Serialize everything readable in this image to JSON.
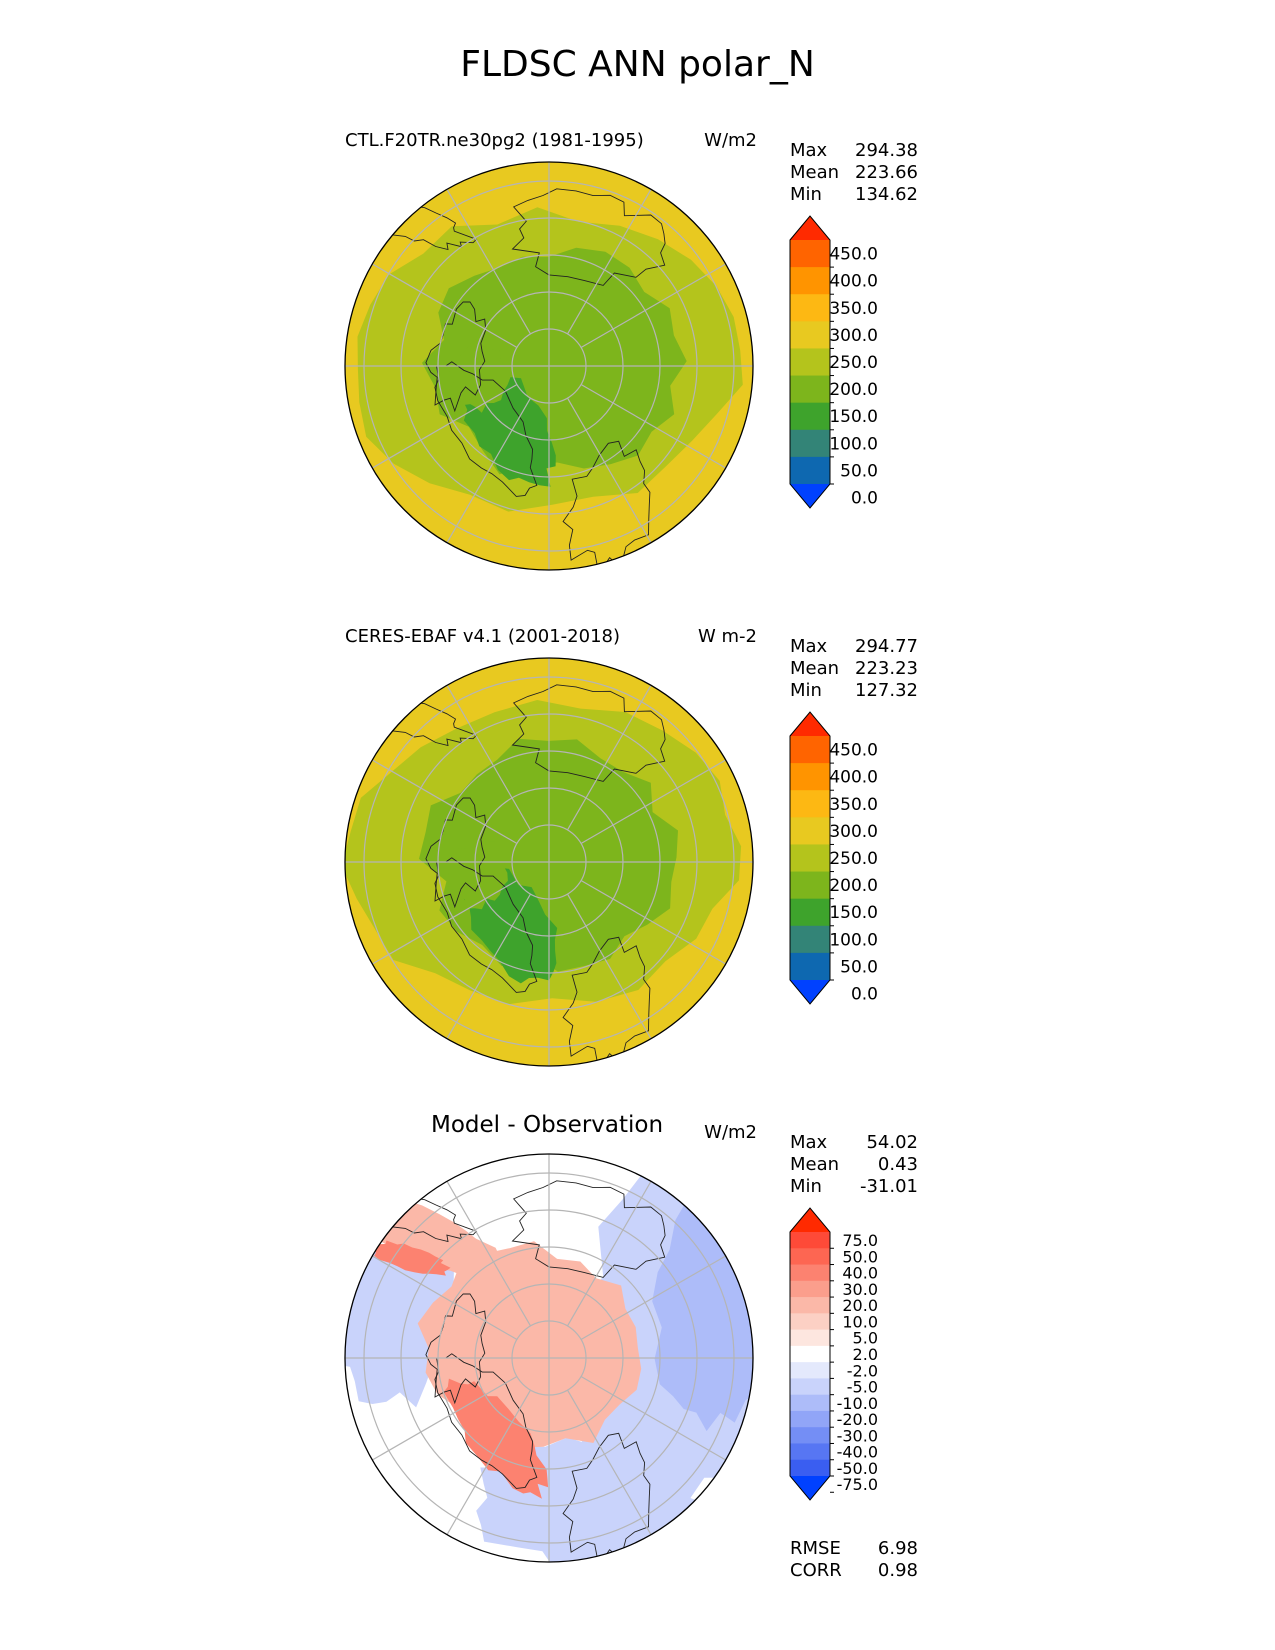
{
  "title": "FLDSC ANN polar_N",
  "panels": [
    {
      "id": "test",
      "title": "CTL.F20TR.ne30pg2 (1981-1995)",
      "units": "W/m2",
      "stats": {
        "max_label": "Max",
        "max": "294.38",
        "mean_label": "Mean",
        "mean": "223.66",
        "min_label": "Min",
        "min": "134.62"
      },
      "colorbar": {
        "ticks": [
          "450.0",
          "400.0",
          "350.0",
          "300.0",
          "250.0",
          "200.0",
          "150.0",
          "100.0",
          "50.0",
          "0.0"
        ],
        "colors": [
          "#ff2a00",
          "#ff6400",
          "#ff9400",
          "#fdb813",
          "#e8c920",
          "#b4c41c",
          "#7db51c",
          "#3ea32c",
          "#338477",
          "#0e68b0",
          "#0041ff"
        ]
      },
      "map_colors": {
        "ocean_outer": "#e8c920",
        "mid": "#b4c41c",
        "inner": "#7db51c",
        "core": "#3ea32c"
      }
    },
    {
      "id": "ref",
      "title": "CERES-EBAF v4.1 (2001-2018)",
      "units": "W m-2",
      "stats": {
        "max_label": "Max",
        "max": "294.77",
        "mean_label": "Mean",
        "mean": "223.23",
        "min_label": "Min",
        "min": "127.32"
      },
      "colorbar": {
        "ticks": [
          "450.0",
          "400.0",
          "350.0",
          "300.0",
          "250.0",
          "200.0",
          "150.0",
          "100.0",
          "50.0",
          "0.0"
        ],
        "colors": [
          "#ff2a00",
          "#ff6400",
          "#ff9400",
          "#fdb813",
          "#e8c920",
          "#b4c41c",
          "#7db51c",
          "#3ea32c",
          "#338477",
          "#0e68b0",
          "#0041ff"
        ]
      },
      "map_colors": {
        "ocean_outer": "#e8c920",
        "mid": "#b4c41c",
        "inner": "#7db51c",
        "core": "#3ea32c"
      }
    },
    {
      "id": "diff",
      "title": "Model - Observation",
      "units": "W/m2",
      "stats": {
        "max_label": "Max",
        "max": "54.02",
        "mean_label": "Mean",
        "mean": "0.43",
        "min_label": "Min",
        "min": "-31.01"
      },
      "metrics": {
        "rmse_label": "RMSE",
        "rmse": "6.98",
        "corr_label": "CORR",
        "corr": "0.98"
      },
      "colorbar": {
        "ticks": [
          "75.0",
          "50.0",
          "40.0",
          "30.0",
          "20.0",
          "10.0",
          "5.0",
          "2.0",
          "-2.0",
          "-5.0",
          "-10.0",
          "-20.0",
          "-30.0",
          "-40.0",
          "-50.0",
          "-75.0"
        ],
        "colors": [
          "#ff2a00",
          "#fe4a38",
          "#fd6652",
          "#fc8270",
          "#fb9e8c",
          "#fbb8a8",
          "#fcd0c4",
          "#fde6df",
          "#ffffff",
          "#e4e9fc",
          "#c9d3fb",
          "#adbcf9",
          "#91a5f7",
          "#748ef5",
          "#5776f3",
          "#3a5ef1",
          "#0041ff"
        ]
      },
      "map_colors": {
        "pos": "#fbb8a8",
        "pos_strong": "#fc8270",
        "neg": "#c9d3fb",
        "neg_strong": "#adbcf9",
        "neutral": "#ffffff"
      }
    }
  ]
}
